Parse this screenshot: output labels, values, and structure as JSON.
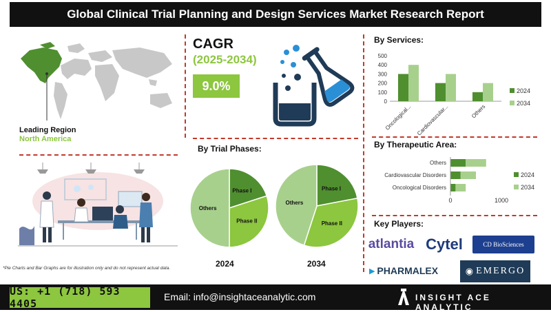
{
  "header": {
    "title": "Global Clinical Trial Planning and Design Services Market Research Report"
  },
  "region": {
    "label": "Leading Region",
    "value": "North America"
  },
  "cagr": {
    "label": "CAGR",
    "period": "(2025-2034)",
    "value": "9.0%"
  },
  "colors": {
    "accent": "#8dc63f",
    "dark_green": "#4f8f2f",
    "light_green": "#a8d08d",
    "navy": "#1f3b57",
    "blue": "#2b8fd6",
    "divider": "#c0392b"
  },
  "services": {
    "title": "By Services:",
    "chart_data": {
      "type": "bar",
      "categories": [
        "Oncological...",
        "Cardiovascular...",
        "Others"
      ],
      "series": [
        {
          "name": "2024",
          "values": [
            300,
            200,
            100
          ]
        },
        {
          "name": "2034",
          "values": [
            400,
            300,
            200
          ]
        }
      ],
      "yticks": [
        "0",
        "100",
        "200",
        "300",
        "400",
        "500"
      ],
      "ylim": [
        0,
        500
      ]
    }
  },
  "therapeutic": {
    "title": "By Therapeutic Area:",
    "chart_data": {
      "type": "bar",
      "orientation": "horizontal",
      "categories": [
        "Others",
        "Cardiovascular Disorders",
        "Oncological Disorders"
      ],
      "series": [
        {
          "name": "2024",
          "values": [
            300,
            200,
            100
          ]
        },
        {
          "name": "2034",
          "values": [
            400,
            300,
            200
          ]
        }
      ],
      "xticks": [
        "0",
        "1000"
      ],
      "xlim": [
        0,
        1000
      ]
    }
  },
  "phases": {
    "title": "By Trial Phases:",
    "chart_data": [
      {
        "type": "pie",
        "year": "2024",
        "labels": [
          "Phase I",
          "Phase II",
          "Others"
        ],
        "values": [
          20,
          30,
          50
        ]
      },
      {
        "type": "pie",
        "year": "2034",
        "labels": [
          "Phase I",
          "Phase II",
          "Others"
        ],
        "values": [
          22,
          33,
          45
        ]
      }
    ]
  },
  "key_players": {
    "title": "Key Players:",
    "logos": [
      "atlantia",
      "Cytel",
      "CD BioSciences",
      "PHARMALEX",
      "EMERGO"
    ]
  },
  "note": "*Pie Charts and Bar Graphs are for illustration only and do not represent actual data.",
  "footer": {
    "phone": "US: +1 (718) 593 4405",
    "email": "Email: info@insightaceanalytic.com",
    "brand": "INSIGHT ACE ANALYTIC"
  },
  "icons": [
    "world-map-icon",
    "flask-icon",
    "beaker-icon",
    "lab-scene-illustration",
    "brand-logo-icon"
  ]
}
